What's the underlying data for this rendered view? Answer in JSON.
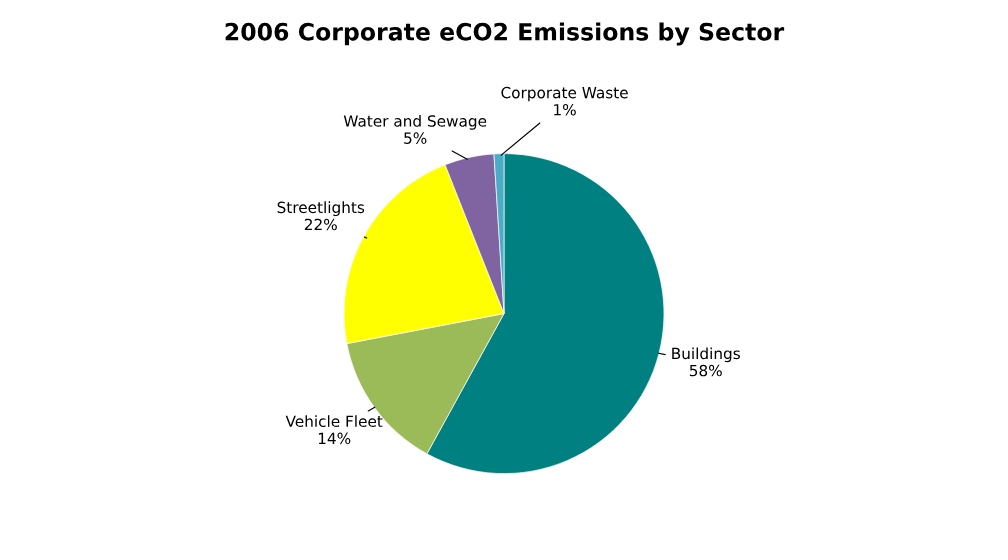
{
  "chart_data": {
    "type": "pie",
    "title": "2006 Corporate eCO2 Emissions by Sector",
    "categories": [
      "Buildings",
      "Vehicle Fleet",
      "Streetlights",
      "Water and Sewage",
      "Corporate Waste"
    ],
    "values": [
      58,
      14,
      22,
      5,
      1
    ],
    "colors": [
      "#008080",
      "#9bbb59",
      "#ffff00",
      "#8064a2",
      "#4bacc6"
    ],
    "value_labels": [
      "58%",
      "14%",
      "22%",
      "5%",
      "1%"
    ],
    "legend": false
  }
}
